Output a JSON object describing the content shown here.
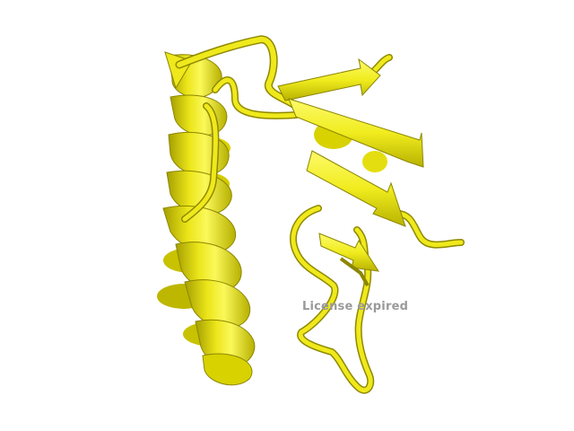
{
  "viewer": {
    "watermark_text": "License expired"
  },
  "colors": {
    "background": "#ffffff",
    "cartoon_main": "#f0ec1e",
    "cartoon_light": "#fbf85a",
    "cartoon_dark": "#9f9a00",
    "cartoon_shadow": "#6f6a00",
    "watermark": "#9a9a9a"
  }
}
